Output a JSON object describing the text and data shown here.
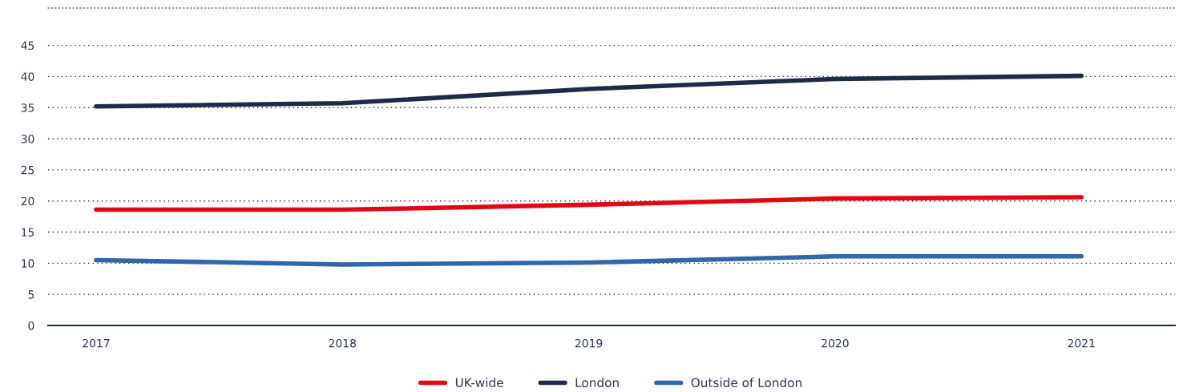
{
  "chart_data": {
    "type": "line",
    "categories": [
      "2017",
      "2018",
      "2019",
      "2020",
      "2021"
    ],
    "series": [
      {
        "name": "UK-wide",
        "color": "#e30613",
        "values": [
          18.6,
          18.6,
          19.4,
          20.4,
          20.6
        ]
      },
      {
        "name": "London",
        "color": "#1f2a4a",
        "values": [
          35.2,
          35.7,
          38.0,
          39.6,
          40.1
        ]
      },
      {
        "name": "Outside of London",
        "color": "#2f67a8",
        "values": [
          10.5,
          9.8,
          10.1,
          11.1,
          11.1
        ]
      }
    ],
    "ylim": [
      0,
      51
    ],
    "yticks": [
      0,
      5,
      10,
      15,
      20,
      25,
      30,
      35,
      40,
      45
    ],
    "grid": "y",
    "legend": "bottom",
    "marker": "none",
    "line_style": "solid"
  }
}
